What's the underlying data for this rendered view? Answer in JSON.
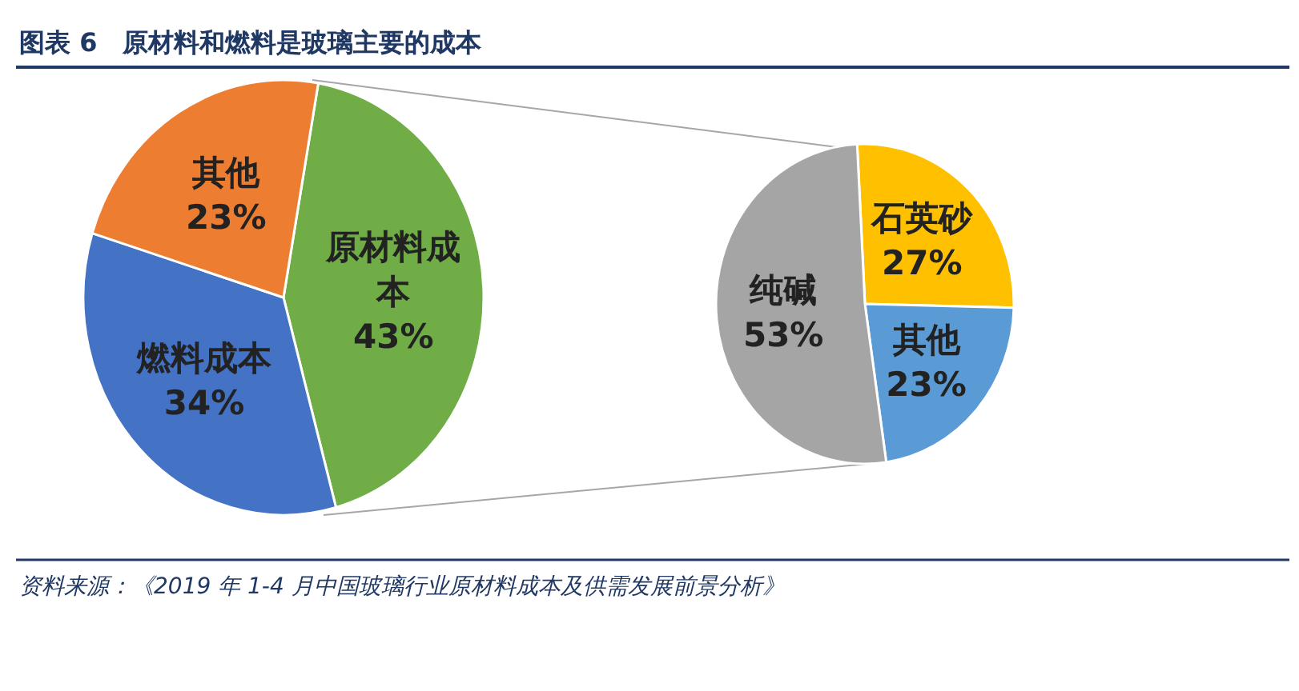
{
  "chart_data": [
    {
      "type": "pie",
      "title": "图表 6　原材料和燃料是玻璃主要的成本",
      "categories": [
        "原材料成本",
        "燃料成本",
        "其他"
      ],
      "values": [
        43,
        34,
        23
      ],
      "colors": [
        "#70ad47",
        "#4472c4",
        "#ed7d31"
      ],
      "value_labels": [
        "43%",
        "34%",
        "23%"
      ],
      "annotations": [
        "资料来源：《2019 年 1-4 月中国玻璃行业原材料成本及供需发展前景分析》"
      ]
    },
    {
      "type": "pie",
      "categories": [
        "石英砂",
        "其他",
        "纯碱"
      ],
      "values": [
        27,
        23,
        53
      ],
      "colors": [
        "#ffc000",
        "#5b9bd5",
        "#a5a5a5"
      ],
      "value_labels": [
        "27%",
        "23%",
        "53%"
      ]
    }
  ]
}
